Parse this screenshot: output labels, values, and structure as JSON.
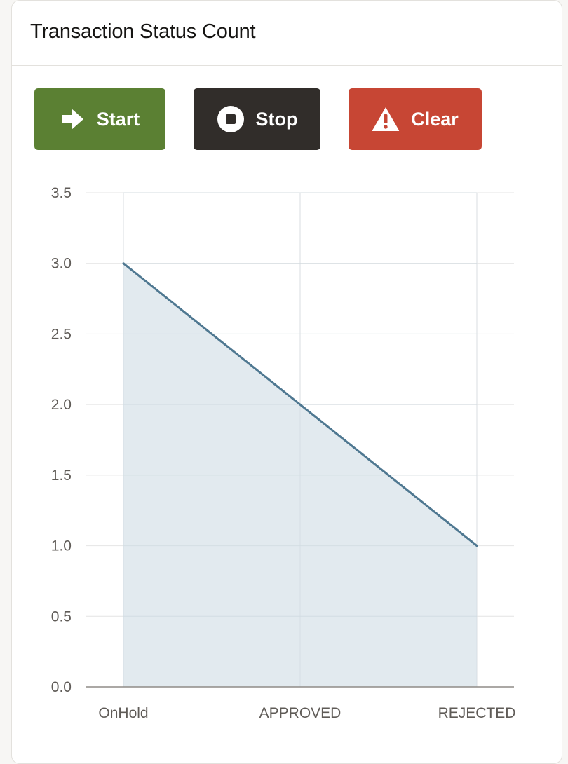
{
  "header": {
    "title": "Transaction Status Count"
  },
  "toolbar": {
    "start_label": "Start",
    "stop_label": "Stop",
    "clear_label": "Clear"
  },
  "icons": {
    "start": "arrow-right-icon",
    "stop": "stop-circle-icon",
    "clear": "warning-triangle-icon"
  },
  "colors": {
    "start": "#5b8033",
    "stop": "#312d2a",
    "clear": "#c74634",
    "line": "#4f7891",
    "area": "#dde6ec"
  },
  "chart_data": {
    "type": "area",
    "categories": [
      "OnHold",
      "APPROVED",
      "REJECTED"
    ],
    "values": [
      3,
      2,
      1
    ],
    "y_ticks": [
      "3.5",
      "3.0",
      "2.5",
      "2.0",
      "1.5",
      "1.0",
      "0.5",
      "0.0"
    ],
    "ylim": [
      0,
      3.5
    ],
    "grid": true
  }
}
